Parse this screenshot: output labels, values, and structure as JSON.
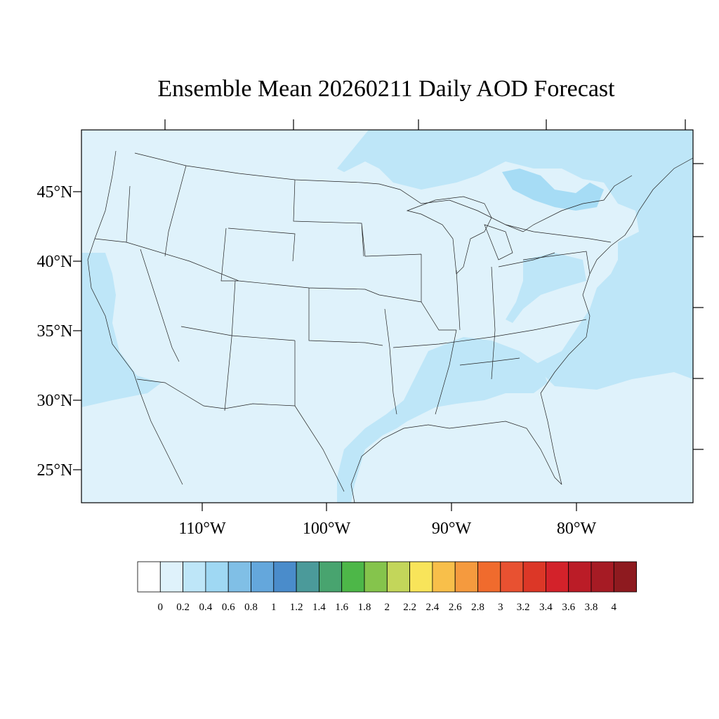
{
  "title": "Ensemble Mean 20260211 Daily AOD Forecast",
  "map": {
    "latitude_labels": [
      "45°N",
      "40°N",
      "35°N",
      "30°N",
      "25°N"
    ],
    "longitude_labels": [
      "110°W",
      "100°W",
      "90°W",
      "80°W"
    ],
    "colors": {
      "background_low": "#dff2fb",
      "elevated": "#bee6f8",
      "highest": "#a6dcf5",
      "borders": "#222222"
    }
  },
  "colorbar": {
    "labels": [
      "0",
      "0.2",
      "0.4",
      "0.6",
      "0.8",
      "1",
      "1.2",
      "1.4",
      "1.6",
      "1.8",
      "2",
      "2.2",
      "2.4",
      "2.6",
      "2.8",
      "3",
      "3.2",
      "3.4",
      "3.6",
      "3.8",
      "4"
    ],
    "colors": [
      "#ffffff",
      "#dff2fb",
      "#bee6f8",
      "#9fd8f3",
      "#80bfe6",
      "#64a7dc",
      "#4a8ccb",
      "#4b9a9a",
      "#48a46f",
      "#4db748",
      "#85c44c",
      "#c3d65a",
      "#f8e45a",
      "#f8bf4a",
      "#f59a3e",
      "#f06b2d",
      "#e85131",
      "#dc3727",
      "#d3222a",
      "#bb1c27",
      "#a61b24",
      "#8e1a1f"
    ]
  }
}
